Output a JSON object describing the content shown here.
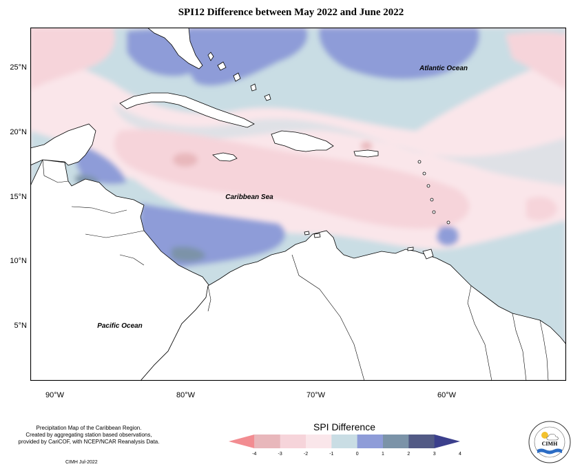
{
  "title": "SPI12 Difference between May 2022 and June 2022",
  "map_labels": {
    "atlantic": "Atlantic Ocean",
    "caribbean": "Caribbean Sea",
    "pacific": "Pacific Ocean"
  },
  "lat_ticks": [
    "25°N",
    "20°N",
    "15°N",
    "10°N",
    "5°N"
  ],
  "lon_ticks": [
    "90°W",
    "80°W",
    "70°W",
    "60°W"
  ],
  "credits": {
    "line1": "Precipitation Map of the Caribbean Region.",
    "line2": "Created by aggregating station based observations,",
    "line3": "provided by CariCOF, with NCEP/NCAR Reanalysis Data.",
    "stamp": "CIMH Jul-2022"
  },
  "legend": {
    "title": "SPI Difference",
    "ticks": [
      "-4",
      "-3",
      "-2",
      "-1",
      "0",
      "1",
      "2",
      "3",
      "4"
    ],
    "colors": [
      "#f28c91",
      "#e8b7bb",
      "#f6d4da",
      "#fae6ea",
      "#c9dde4",
      "#8e9cd8",
      "#7b93a8",
      "#525a85",
      "#3b3f8c"
    ]
  },
  "logo": {
    "name": "CIMH",
    "ring_text": "Caribbean Institute for Meteorology and Hydrology"
  },
  "colors": {
    "light_red": "#fae6ea",
    "pink": "#f6d4da",
    "neutral_blue": "#c9dde4",
    "blue": "#8e9cd8",
    "land_white": "#ffffff"
  }
}
